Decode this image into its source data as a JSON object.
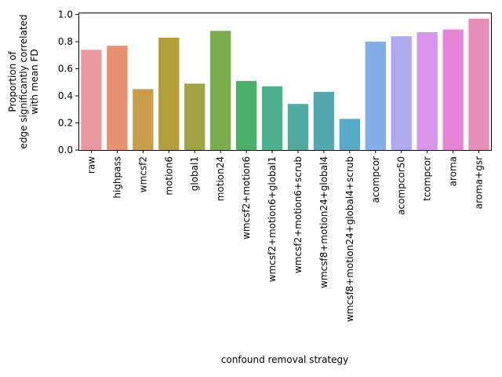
{
  "chart_data": {
    "type": "bar",
    "title": "",
    "xlabel": "confound removal strategy",
    "ylabel_lines": [
      "Proportion of",
      "edge significantly correlated",
      "with mean FD"
    ],
    "ylim": [
      0,
      1.0
    ],
    "yticks": [
      "0.0",
      "0.2",
      "0.4",
      "0.6",
      "0.8",
      "1.0"
    ],
    "categories": [
      "raw",
      "highpass",
      "wmcsf2",
      "motion6",
      "global1",
      "motion24",
      "wmcsf2+motion6",
      "wmcsf2+motion6+global1",
      "wmcsf2+motion6+scrub",
      "wmcsf8+motion24+global4",
      "wmcsf8+motion24+global4+scrub",
      "acompcor",
      "acompcor50",
      "tcompcor",
      "aroma",
      "aroma+gsr"
    ],
    "values": [
      0.74,
      0.77,
      0.45,
      0.83,
      0.49,
      0.88,
      0.51,
      0.47,
      0.34,
      0.43,
      0.23,
      0.8,
      0.84,
      0.87,
      0.89,
      0.97
    ],
    "colors": [
      "#ea96a3",
      "#e7916e",
      "#c89e4c",
      "#b49e3c",
      "#a0a444",
      "#7aad4b",
      "#4aaf67",
      "#4db08e",
      "#4faba0",
      "#52a8b0",
      "#57aac8",
      "#81aee6",
      "#adaaed",
      "#d796eb",
      "#e884d8",
      "#e88db8"
    ],
    "grid": false,
    "legend": "none"
  }
}
